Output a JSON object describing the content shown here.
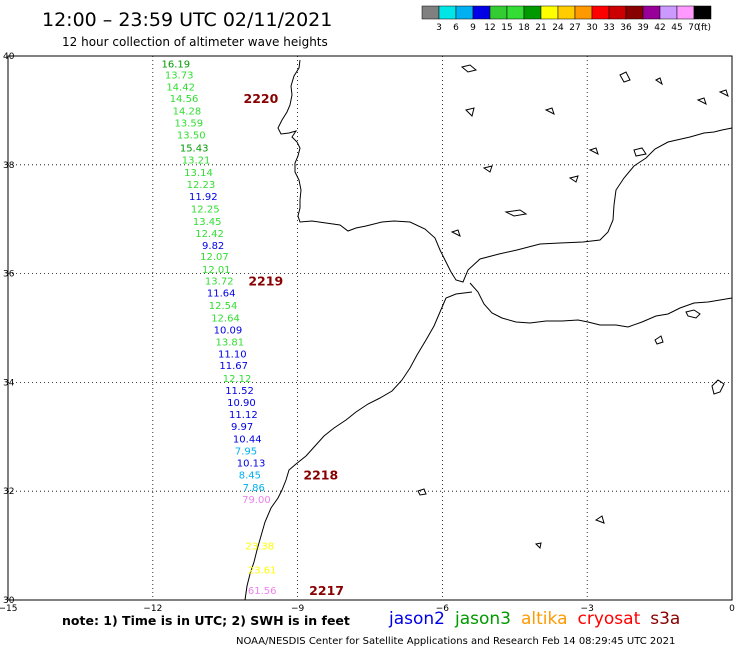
{
  "header": {
    "title": "12:00 – 23:59 UTC 02/11/2021",
    "subtitle": "12 hour collection of altimeter wave heights"
  },
  "colorbar": {
    "colors": [
      "#808080",
      "#00e5e5",
      "#00b0f0",
      "#0000e6",
      "#33cc33",
      "#33dd33",
      "#009900",
      "#ffff00",
      "#ffcc00",
      "#ff9900",
      "#ff0000",
      "#cc0000",
      "#880000",
      "#990099",
      "#cc99ff",
      "#ff99ff",
      "#000000"
    ],
    "labels": [
      "3",
      "6",
      "9",
      "12",
      "15",
      "18",
      "21",
      "24",
      "27",
      "30",
      "33",
      "36",
      "39",
      "42",
      "45",
      "70"
    ],
    "unit": "(ft)"
  },
  "map": {
    "lon_range": [
      -15,
      0
    ],
    "lat_range": [
      30,
      40
    ],
    "xticks": [
      {
        "v": -15,
        "label": "−15"
      },
      {
        "v": -12,
        "label": "−12"
      },
      {
        "v": -9,
        "label": "−9"
      },
      {
        "v": -6,
        "label": "−6"
      },
      {
        "v": -3,
        "label": "−3"
      },
      {
        "v": 0,
        "label": "0"
      }
    ],
    "yticks": [
      {
        "v": 40,
        "label": "40"
      },
      {
        "v": 38,
        "label": "38"
      },
      {
        "v": 36,
        "label": "36"
      },
      {
        "v": 34,
        "label": "34"
      },
      {
        "v": 32,
        "label": "32"
      },
      {
        "v": 30,
        "label": "30"
      }
    ],
    "grid": true
  },
  "observations": [
    {
      "lon": -11.82,
      "lat": 39.86,
      "value": "16.19",
      "color": "#009900"
    },
    {
      "lon": -11.75,
      "lat": 39.66,
      "value": "13.73",
      "color": "#33dd33"
    },
    {
      "lon": -11.72,
      "lat": 39.44,
      "value": "14.42",
      "color": "#33dd33"
    },
    {
      "lon": -11.65,
      "lat": 39.23,
      "value": "14.56",
      "color": "#33dd33"
    },
    {
      "lon": -11.59,
      "lat": 39.0,
      "value": "14.28",
      "color": "#33dd33"
    },
    {
      "lon": -11.55,
      "lat": 38.78,
      "value": "13.59",
      "color": "#33dd33"
    },
    {
      "lon": -11.5,
      "lat": 38.56,
      "value": "13.50",
      "color": "#33dd33"
    },
    {
      "lon": -11.44,
      "lat": 38.32,
      "value": "15.43",
      "color": "#009900"
    },
    {
      "lon": -11.4,
      "lat": 38.1,
      "value": "13.21",
      "color": "#33dd33"
    },
    {
      "lon": -11.35,
      "lat": 37.87,
      "value": "13.14",
      "color": "#33dd33"
    },
    {
      "lon": -11.3,
      "lat": 37.65,
      "value": "12.23",
      "color": "#33dd33"
    },
    {
      "lon": -11.25,
      "lat": 37.43,
      "value": "11.92",
      "color": "#0000e6"
    },
    {
      "lon": -11.21,
      "lat": 37.2,
      "value": "12.25",
      "color": "#33dd33"
    },
    {
      "lon": -11.17,
      "lat": 36.97,
      "value": "13.45",
      "color": "#33dd33"
    },
    {
      "lon": -11.12,
      "lat": 36.75,
      "value": "12.42",
      "color": "#33dd33"
    },
    {
      "lon": -10.98,
      "lat": 36.53,
      "value": "9.82",
      "color": "#0000e6"
    },
    {
      "lon": -11.02,
      "lat": 36.32,
      "value": "12.07",
      "color": "#33dd33"
    },
    {
      "lon": -10.98,
      "lat": 36.08,
      "value": "12.01",
      "color": "#33dd33"
    },
    {
      "lon": -10.92,
      "lat": 35.87,
      "value": "13.72",
      "color": "#33dd33"
    },
    {
      "lon": -10.88,
      "lat": 35.65,
      "value": "11.64",
      "color": "#0000e6"
    },
    {
      "lon": -10.84,
      "lat": 35.42,
      "value": "12.54",
      "color": "#33dd33"
    },
    {
      "lon": -10.79,
      "lat": 35.19,
      "value": "12.64",
      "color": "#33dd33"
    },
    {
      "lon": -10.74,
      "lat": 34.97,
      "value": "10.09",
      "color": "#0000e6"
    },
    {
      "lon": -10.7,
      "lat": 34.75,
      "value": "13.81",
      "color": "#33dd33"
    },
    {
      "lon": -10.65,
      "lat": 34.53,
      "value": "11.10",
      "color": "#0000e6"
    },
    {
      "lon": -10.62,
      "lat": 34.32,
      "value": "11.67",
      "color": "#0000e6"
    },
    {
      "lon": -10.55,
      "lat": 34.08,
      "value": "12.12",
      "color": "#33dd33"
    },
    {
      "lon": -10.5,
      "lat": 33.86,
      "value": "11.52",
      "color": "#0000e6"
    },
    {
      "lon": -10.46,
      "lat": 33.64,
      "value": "10.90",
      "color": "#0000e6"
    },
    {
      "lon": -10.42,
      "lat": 33.42,
      "value": "11.12",
      "color": "#0000e6"
    },
    {
      "lon": -10.38,
      "lat": 33.2,
      "value": "9.97",
      "color": "#0000e6"
    },
    {
      "lon": -10.34,
      "lat": 32.97,
      "value": "10.44",
      "color": "#0000e6"
    },
    {
      "lon": -10.3,
      "lat": 32.75,
      "value": "7.95",
      "color": "#00b0f0"
    },
    {
      "lon": -10.26,
      "lat": 32.53,
      "value": "10.13",
      "color": "#0000e6"
    },
    {
      "lon": -10.22,
      "lat": 32.31,
      "value": "8.45",
      "color": "#00b0f0"
    },
    {
      "lon": -10.14,
      "lat": 32.08,
      "value": "7.86",
      "color": "#00b0f0"
    },
    {
      "lon": -10.15,
      "lat": 31.86,
      "value": "79.00",
      "color": "#ee82ee"
    },
    {
      "lon": -10.08,
      "lat": 31.0,
      "value": "23.38",
      "color": "#ffff00"
    },
    {
      "lon": -10.03,
      "lat": 30.56,
      "value": "23.61",
      "color": "#ffff00"
    },
    {
      "lon": -10.03,
      "lat": 30.18,
      "value": "61.56",
      "color": "#ee82ee"
    }
  ],
  "passes": [
    {
      "lon": -10.12,
      "lat": 39.23,
      "label": "2220",
      "color": "#880000"
    },
    {
      "lon": -10.02,
      "lat": 35.87,
      "label": "2219",
      "color": "#880000"
    },
    {
      "lon": -8.88,
      "lat": 32.31,
      "label": "2218",
      "color": "#880000"
    },
    {
      "lon": -8.76,
      "lat": 30.18,
      "label": "2217",
      "color": "#880000"
    }
  ],
  "footer": {
    "note": "note:  1)  Time is in UTC;  2)  SWH is in feet",
    "legend": [
      {
        "label": "jason2",
        "color": "#0000e6"
      },
      {
        "label": "jason3",
        "color": "#009900"
      },
      {
        "label": "altika",
        "color": "#ff9900"
      },
      {
        "label": "cryosat",
        "color": "#ff0000"
      },
      {
        "label": "s3a",
        "color": "#880000"
      }
    ],
    "credit": "NOAA/NESDIS Center for Satellite Applications and Research    Feb 14 08:29:45 UTC 2021"
  }
}
